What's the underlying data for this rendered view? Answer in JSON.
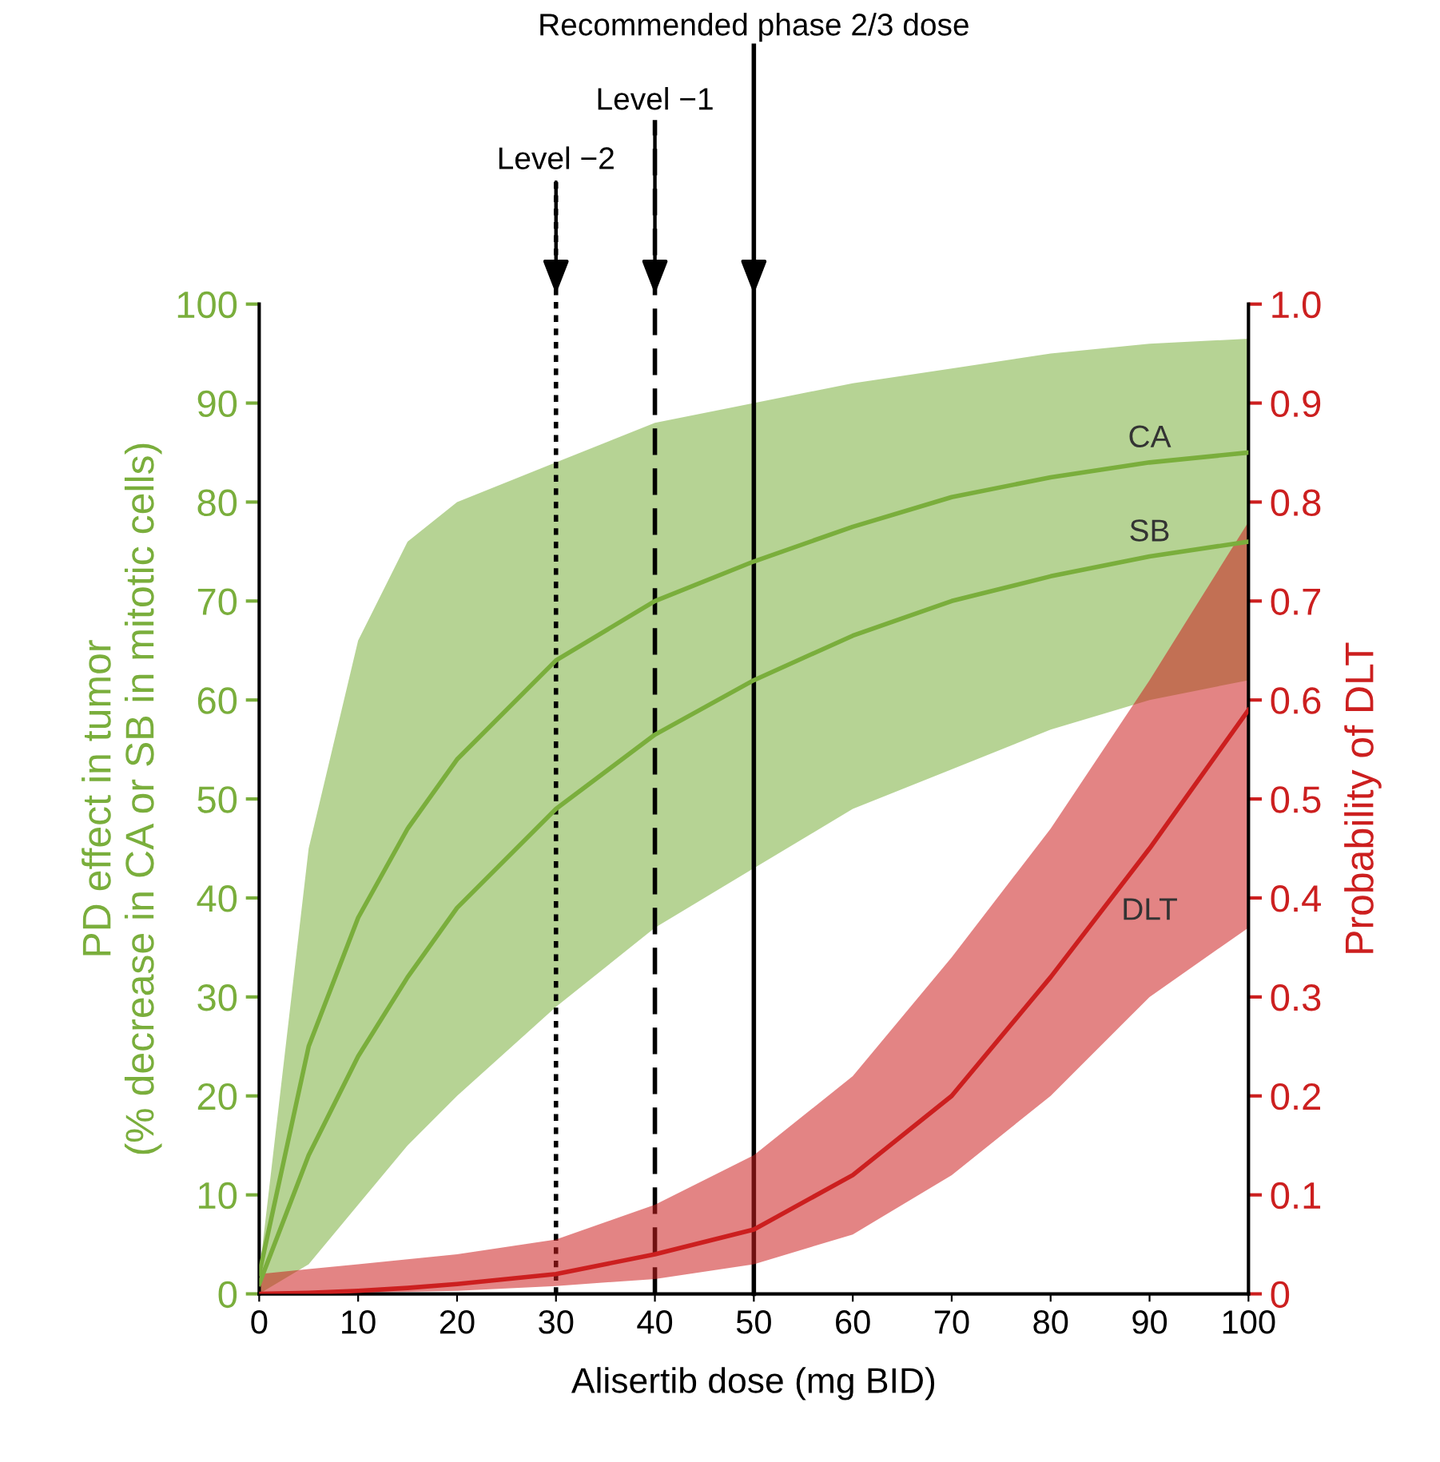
{
  "chart_data": {
    "type": "line",
    "xlabel": "Alisertib dose (mg BID)",
    "ylabel": "PD effect in tumor\n(% decrease in CA or SB in mitotic cells)",
    "y2label": "Probability of DLT",
    "x": [
      0,
      5,
      10,
      15,
      20,
      30,
      40,
      50,
      60,
      70,
      80,
      90,
      100
    ],
    "series": [
      {
        "name": "CA",
        "color": "#7aae3c",
        "values": [
          2,
          25,
          38,
          47,
          54,
          64,
          70,
          74,
          77.5,
          80.5,
          82.5,
          84,
          85
        ],
        "lower": [
          0,
          3,
          9,
          15,
          20,
          29,
          37,
          43,
          49,
          53,
          57,
          60,
          62
        ],
        "upper": [
          2,
          45,
          66,
          76,
          80,
          84,
          88,
          90,
          92,
          93.5,
          95,
          96,
          96.5
        ]
      },
      {
        "name": "SB",
        "color": "#7aae3c",
        "values": [
          1,
          14,
          24,
          32,
          39,
          49,
          56.5,
          62,
          66.5,
          70,
          72.5,
          74.5,
          76
        ]
      },
      {
        "name": "DLT",
        "color": "#cc1f1f",
        "axis": "y2",
        "values": [
          0,
          0.001,
          0.003,
          0.006,
          0.01,
          0.02,
          0.04,
          0.065,
          0.12,
          0.2,
          0.32,
          0.45,
          0.59
        ],
        "lower": [
          0,
          0,
          0.001,
          0.002,
          0.003,
          0.008,
          0.015,
          0.03,
          0.06,
          0.12,
          0.2,
          0.3,
          0.37
        ],
        "upper": [
          0.02,
          0.025,
          0.03,
          0.035,
          0.04,
          0.055,
          0.09,
          0.14,
          0.22,
          0.34,
          0.47,
          0.62,
          0.78
        ]
      }
    ],
    "xlim": [
      0,
      100
    ],
    "xticks": [
      0,
      10,
      20,
      30,
      40,
      50,
      60,
      70,
      80,
      90,
      100
    ],
    "ylim": [
      0,
      100
    ],
    "yticks": [
      0,
      10,
      20,
      30,
      40,
      50,
      60,
      70,
      80,
      90,
      100
    ],
    "y2lim": [
      0,
      1
    ],
    "y2ticks": [
      {
        "value": 0,
        "label": "0"
      },
      0.1,
      0.2,
      0.3,
      0.4,
      0.5,
      0.6,
      0.7,
      0.8,
      0.9,
      {
        "value": 1,
        "label": "1.0"
      }
    ],
    "ref_lines": [
      {
        "axis": "x",
        "value": 30,
        "label": "Level −2",
        "line_style": "dotted"
      },
      {
        "axis": "x",
        "value": 40,
        "label": "Level −1",
        "line_style": "dashed"
      },
      {
        "axis": "x",
        "value": 50,
        "label": "Recommended phase 2/3 dose",
        "line_style": "solid"
      }
    ],
    "grid": false
  }
}
